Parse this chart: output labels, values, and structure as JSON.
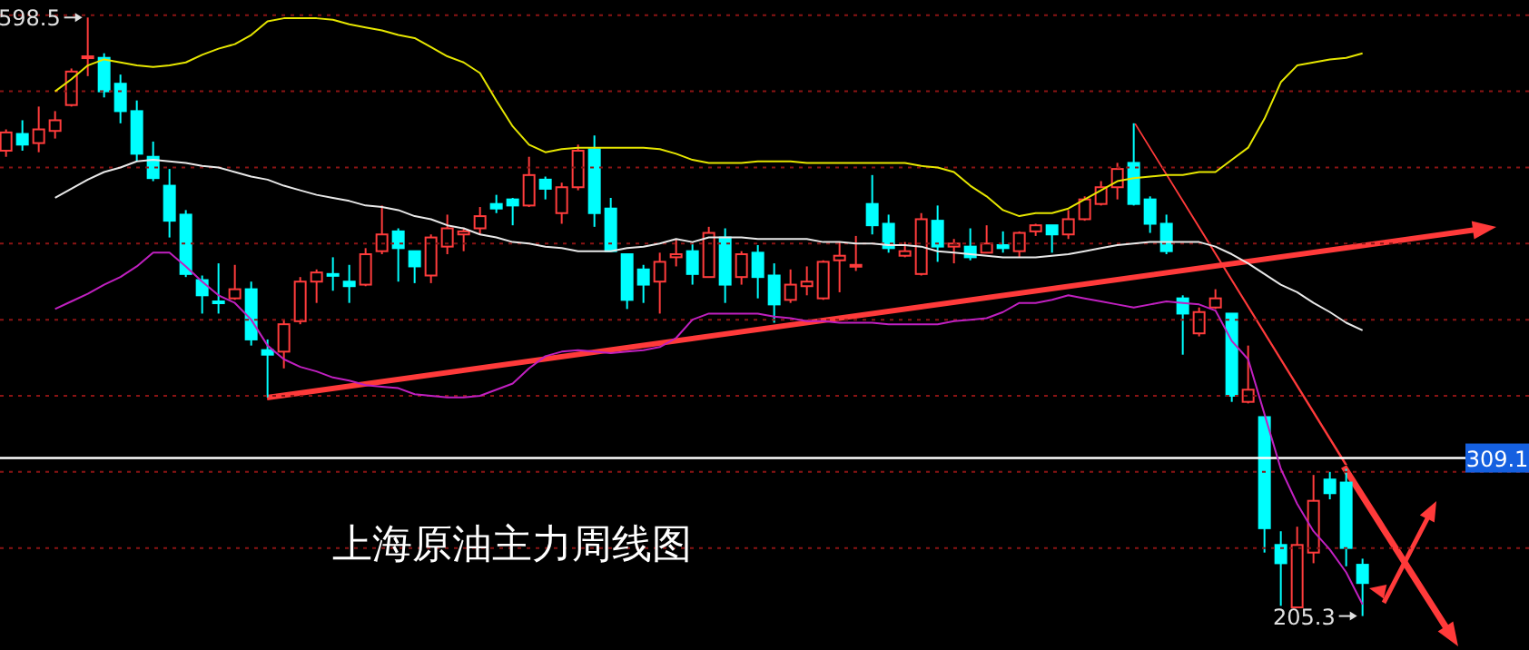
{
  "chart_data": {
    "type": "candlestick",
    "title": "上海原油主力周线图",
    "categories": [
      null,
      null,
      null,
      null,
      null,
      null,
      null,
      null,
      null,
      null,
      null,
      null,
      null,
      null,
      null,
      null,
      null,
      null,
      null,
      null,
      null,
      null,
      null,
      null,
      null,
      null,
      null,
      null,
      null,
      null,
      null,
      null,
      null,
      null,
      null,
      null,
      null,
      null,
      null,
      null,
      null,
      null,
      null,
      null,
      null,
      null,
      null,
      null,
      null,
      null,
      null,
      null,
      null,
      null,
      null,
      null,
      null,
      null,
      null,
      null,
      null,
      null,
      null,
      null,
      null,
      null,
      null,
      null,
      null,
      null,
      null,
      null,
      null,
      null,
      null,
      null,
      null,
      null,
      null,
      null,
      null,
      null,
      null,
      null
    ],
    "ohlc": [
      [
        511,
        525,
        507,
        523
      ],
      [
        522,
        531,
        511,
        515
      ],
      [
        516,
        540,
        510,
        525
      ],
      [
        524,
        537,
        519,
        531
      ],
      [
        541,
        565,
        540,
        563
      ],
      [
        572,
        598.5,
        560,
        573
      ],
      [
        572,
        575,
        546,
        550
      ],
      [
        555,
        561,
        529,
        537
      ],
      [
        537,
        544,
        504,
        509
      ],
      [
        507,
        517,
        491,
        493
      ],
      [
        488,
        499,
        454,
        465
      ],
      [
        469,
        472,
        428,
        430
      ],
      [
        426,
        429,
        404,
        416
      ],
      [
        412,
        437,
        404,
        411
      ],
      [
        414,
        436,
        413,
        420
      ],
      [
        420,
        425,
        383,
        387
      ],
      [
        380,
        387,
        349,
        377
      ],
      [
        379,
        400,
        368,
        397
      ],
      [
        399,
        428,
        397,
        425
      ],
      [
        425,
        433,
        411,
        431
      ],
      [
        430,
        441,
        419,
        429
      ],
      [
        425,
        436,
        411,
        422
      ],
      [
        423,
        447,
        422,
        443
      ],
      [
        445,
        475,
        443,
        456
      ],
      [
        458,
        460,
        425,
        447
      ],
      [
        445,
        445,
        424,
        435
      ],
      [
        429,
        456,
        424,
        454
      ],
      [
        448,
        469,
        443,
        460
      ],
      [
        456,
        460,
        445,
        458
      ],
      [
        460,
        474,
        456,
        468
      ],
      [
        476,
        482,
        470,
        473
      ],
      [
        479,
        480,
        462,
        475
      ],
      [
        475,
        507,
        474,
        495
      ],
      [
        492,
        494,
        479,
        486
      ],
      [
        470,
        490,
        463,
        487
      ],
      [
        487,
        515,
        485,
        511
      ],
      [
        512,
        521,
        461,
        470
      ],
      [
        473,
        480,
        445,
        445
      ],
      [
        443,
        443,
        407,
        413
      ],
      [
        433,
        436,
        411,
        423
      ],
      [
        425,
        444,
        404,
        438
      ],
      [
        441,
        453,
        435,
        443
      ],
      [
        445,
        451,
        423,
        430
      ],
      [
        428,
        461,
        428,
        457
      ],
      [
        454,
        460,
        411,
        423
      ],
      [
        428,
        445,
        423,
        443
      ],
      [
        444,
        449,
        414,
        428
      ],
      [
        429,
        437,
        398,
        410
      ],
      [
        413,
        433,
        411,
        423
      ],
      [
        422,
        435,
        416,
        425
      ],
      [
        414,
        439,
        413,
        438
      ],
      [
        439,
        451,
        418,
        442
      ],
      [
        435,
        455,
        432,
        436
      ],
      [
        476,
        495,
        456,
        462
      ],
      [
        463,
        469,
        444,
        447
      ],
      [
        442,
        451,
        441,
        445
      ],
      [
        430,
        470,
        429,
        466
      ],
      [
        465,
        475,
        438,
        448
      ],
      [
        448,
        453,
        437,
        450
      ],
      [
        448,
        460,
        439,
        441
      ],
      [
        444,
        462,
        444,
        450
      ],
      [
        449,
        458,
        444,
        447
      ],
      [
        445,
        458,
        441,
        457
      ],
      [
        458,
        463,
        455,
        462
      ],
      [
        462,
        462,
        444,
        456
      ],
      [
        456,
        472,
        453,
        466
      ],
      [
        466,
        481,
        465,
        479
      ],
      [
        476,
        491,
        475,
        487
      ],
      [
        487,
        503,
        479,
        499
      ],
      [
        503,
        529,
        475,
        476
      ],
      [
        479,
        481,
        457,
        463
      ],
      [
        463,
        469,
        443,
        445
      ],
      [
        414,
        416,
        377,
        404
      ],
      [
        391,
        408,
        389,
        405
      ],
      [
        408,
        420,
        407,
        414
      ],
      [
        404,
        404,
        346,
        350
      ],
      [
        346,
        383,
        345,
        354
      ],
      [
        336,
        336,
        247,
        263
      ],
      [
        252,
        261,
        212,
        240
      ],
      [
        211,
        264,
        211,
        252
      ],
      [
        247,
        298,
        240,
        281
      ],
      [
        295,
        300,
        282,
        286
      ],
      [
        293,
        302,
        238,
        250
      ],
      [
        239,
        243,
        205.3,
        227
      ]
    ],
    "colors": [
      "#ff3c3c",
      "#00ffff",
      "#ff3c3c",
      "#ff3c3c",
      "#ff3c3c",
      "#ff3c3c",
      "#00ffff",
      "#00ffff",
      "#00ffff",
      "#00ffff",
      "#00ffff",
      "#00ffff",
      "#00ffff",
      "#00ffff",
      "#ff3c3c",
      "#00ffff",
      "#00ffff",
      "#ff3c3c",
      "#ff3c3c",
      "#ff3c3c",
      "#00ffff",
      "#00ffff",
      "#ff3c3c",
      "#ff3c3c",
      "#00ffff",
      "#00ffff",
      "#ff3c3c",
      "#ff3c3c",
      "#ff3c3c",
      "#ff3c3c",
      "#00ffff",
      "#00ffff",
      "#ff3c3c",
      "#00ffff",
      "#ff3c3c",
      "#ff3c3c",
      "#00ffff",
      "#00ffff",
      "#00ffff",
      "#00ffff",
      "#ff3c3c",
      "#ff3c3c",
      "#00ffff",
      "#ff3c3c",
      "#00ffff",
      "#ff3c3c",
      "#00ffff",
      "#00ffff",
      "#ff3c3c",
      "#ff3c3c",
      "#ff3c3c",
      "#ff3c3c",
      "#ff3c3c",
      "#00ffff",
      "#00ffff",
      "#ff3c3c",
      "#ff3c3c",
      "#00ffff",
      "#ff3c3c",
      "#00ffff",
      "#ff3c3c",
      "#00ffff",
      "#ff3c3c",
      "#ff3c3c",
      "#00ffff",
      "#ff3c3c",
      "#ff3c3c",
      "#ff3c3c",
      "#ff3c3c",
      "#00ffff",
      "#00ffff",
      "#00ffff",
      "#00ffff",
      "#ff3c3c",
      "#ff3c3c",
      "#00ffff",
      "#ff3c3c",
      "#00ffff",
      "#00ffff",
      "#ff3c3c",
      "#ff3c3c",
      "#00ffff",
      "#00ffff",
      "#00ffff"
    ],
    "series": [
      {
        "type": "line",
        "color": "#e6e600",
        "values": [
          null,
          null,
          null,
          550,
          558,
          567,
          571,
          569,
          567,
          566,
          567,
          569,
          574,
          578,
          581,
          587,
          596,
          598,
          598,
          598,
          597,
          594,
          592,
          590,
          587,
          585,
          579,
          573,
          569,
          562,
          544,
          527,
          515,
          510,
          512,
          513,
          513,
          513,
          513,
          513,
          512,
          509,
          505,
          503,
          503,
          503,
          504,
          504,
          504,
          503,
          503,
          503,
          503,
          503,
          503,
          503,
          501,
          500,
          497,
          488,
          481,
          472,
          468,
          470,
          470,
          473,
          479,
          485,
          491,
          493,
          494,
          495,
          495,
          497,
          497,
          505,
          513,
          532,
          556,
          567,
          569,
          571,
          572,
          575
        ]
      },
      {
        "type": "line",
        "color": "#e8e8e8",
        "values": [
          null,
          null,
          null,
          480,
          486,
          492,
          497,
          500,
          504,
          505,
          504,
          503,
          501,
          500,
          497,
          494,
          492,
          488,
          485,
          482,
          480,
          478,
          475,
          474,
          472,
          468,
          466,
          462,
          460,
          456,
          454,
          451,
          450,
          448,
          447,
          445,
          445,
          445,
          447,
          448,
          450,
          453,
          451,
          454,
          454,
          454,
          453,
          453,
          453,
          453,
          451,
          451,
          450,
          450,
          449,
          449,
          448,
          445,
          444,
          443,
          442,
          441,
          441,
          441,
          442,
          443,
          445,
          447,
          449,
          450,
          451,
          451,
          451,
          451,
          448,
          443,
          437,
          430,
          423,
          418,
          411,
          405,
          398,
          393
        ]
      },
      {
        "type": "line",
        "color": "#c020c0",
        "values": [
          null,
          null,
          null,
          407,
          412,
          417,
          423,
          428,
          435,
          444,
          444,
          435,
          425,
          416,
          411,
          400,
          383,
          374,
          369,
          366,
          362,
          360,
          357,
          356,
          355,
          351,
          350,
          349,
          349,
          350,
          354,
          358,
          368,
          376,
          379,
          380,
          379,
          378,
          379,
          380,
          382,
          388,
          400,
          404,
          404,
          404,
          404,
          402,
          401,
          399,
          399,
          398,
          398,
          398,
          397,
          397,
          397,
          397,
          399,
          400,
          401,
          405,
          411,
          411,
          413,
          416,
          414,
          412,
          410,
          408,
          410,
          412,
          411,
          410,
          406,
          386,
          374,
          338,
          302,
          279,
          261,
          249,
          234,
          213
        ]
      }
    ],
    "ylim": [
      183,
      610
    ],
    "yticks": [
      {
        "value": 250,
        "label": null
      },
      {
        "value": 300,
        "label": null
      },
      {
        "value": 350,
        "label": null
      },
      {
        "value": 400,
        "label": null
      },
      {
        "value": 450,
        "label": null
      },
      {
        "value": 500,
        "label": null
      },
      {
        "value": 550,
        "label": null
      },
      {
        "value": 600,
        "label": null
      }
    ],
    "grid": "y",
    "ref_lines": [
      {
        "axis": "y",
        "value": 309.1,
        "label": "309.1",
        "color": "#ffffff"
      }
    ],
    "annotations": [
      "598.5",
      "205.3"
    ]
  }
}
